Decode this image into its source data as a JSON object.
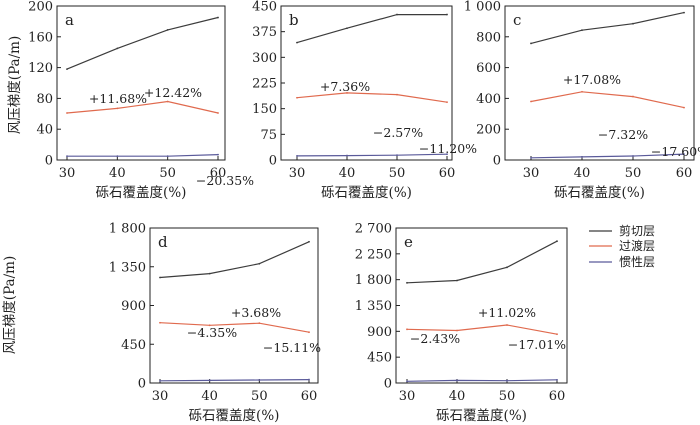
{
  "figure": {
    "xlabel": "砾石覆盖度(%)",
    "ylabel": "风压梯度(Pa/m)",
    "legend": [
      {
        "name": "剪切层",
        "color": "#3c3c3c"
      },
      {
        "name": "过渡层",
        "color": "#e06a4e"
      },
      {
        "name": "惯性层",
        "color": "#5a5a9a"
      }
    ]
  },
  "chart_data": [
    {
      "type": "line",
      "panel": "a",
      "x": [
        30,
        40,
        50,
        60
      ],
      "xticks": [
        "30",
        "40",
        "50",
        "60"
      ],
      "ylim": [
        0,
        200
      ],
      "yticks": [
        "0",
        "40",
        "80",
        "120",
        "160",
        "200"
      ],
      "xlabel": "砾石覆盖度(%)",
      "ylabel": "风压梯度(Pa/m)",
      "show_ylabel": true,
      "series": [
        {
          "name": "剪切层",
          "values": [
            118,
            145,
            169,
            185
          ]
        },
        {
          "name": "过渡层",
          "values": [
            61,
            67,
            76,
            61
          ]
        },
        {
          "name": "惯性层",
          "values": [
            5,
            5,
            5,
            7
          ]
        }
      ],
      "annotations": [
        "+11.68%",
        "+12.42%",
        "−20.35%"
      ]
    },
    {
      "type": "line",
      "panel": "b",
      "x": [
        30,
        40,
        50,
        60
      ],
      "xticks": [
        "30",
        "40",
        "50",
        "60"
      ],
      "ylim": [
        0,
        450
      ],
      "yticks": [
        "0",
        "75",
        "150",
        "225",
        "300",
        "375",
        "450"
      ],
      "xlabel": "砾石覆盖度(%)",
      "ylabel": "",
      "show_ylabel": false,
      "series": [
        {
          "name": "剪切层",
          "values": [
            343,
            385,
            425,
            425
          ]
        },
        {
          "name": "过渡层",
          "values": [
            182,
            196,
            191,
            169
          ]
        },
        {
          "name": "惯性层",
          "values": [
            12,
            13,
            14,
            17
          ]
        }
      ],
      "annotations": [
        "+7.36%",
        "−2.57%",
        "−11.20%"
      ]
    },
    {
      "type": "line",
      "panel": "c",
      "x": [
        30,
        40,
        50,
        60
      ],
      "xticks": [
        "30",
        "40",
        "50",
        "60"
      ],
      "ylim": [
        0,
        1000
      ],
      "yticks": [
        "0",
        "200",
        "400",
        "600",
        "800",
        "1 000"
      ],
      "xlabel": "砾石覆盖度(%)",
      "ylabel": "",
      "show_ylabel": false,
      "series": [
        {
          "name": "剪切层",
          "values": [
            757,
            843,
            885,
            957
          ]
        },
        {
          "name": "过渡层",
          "values": [
            380,
            443,
            412,
            340
          ]
        },
        {
          "name": "惯性层",
          "values": [
            14,
            20,
            26,
            38
          ]
        }
      ],
      "annotations": [
        "+17.08%",
        "−7.32%",
        "−17.60%"
      ]
    },
    {
      "type": "line",
      "panel": "d",
      "x": [
        30,
        40,
        50,
        60
      ],
      "xticks": [
        "30",
        "40",
        "50",
        "60"
      ],
      "ylim": [
        0,
        1800
      ],
      "yticks": [
        "0",
        "450",
        "900",
        "1 350",
        "1 800"
      ],
      "xlabel": "砾石覆盖度(%)",
      "ylabel": "风压梯度(Pa/m)",
      "show_ylabel": true,
      "series": [
        {
          "name": "剪切层",
          "values": [
            1225,
            1270,
            1385,
            1640
          ]
        },
        {
          "name": "过渡层",
          "values": [
            700,
            670,
            695,
            590
          ]
        },
        {
          "name": "惯性层",
          "values": [
            25,
            30,
            35,
            40
          ]
        }
      ],
      "annotations": [
        "−4.35%",
        "+3.68%",
        "−15.11%"
      ]
    },
    {
      "type": "line",
      "panel": "e",
      "x": [
        30,
        40,
        50,
        60
      ],
      "xticks": [
        "30",
        "40",
        "50",
        "60"
      ],
      "ylim": [
        0,
        2700
      ],
      "yticks": [
        "0",
        "450",
        "900",
        "1 350",
        "1 800",
        "2 250",
        "2 700"
      ],
      "xlabel": "砾石覆盖度(%)",
      "ylabel": "",
      "show_ylabel": false,
      "series": [
        {
          "name": "剪切层",
          "values": [
            1745,
            1785,
            2015,
            2470
          ]
        },
        {
          "name": "过渡层",
          "values": [
            935,
            915,
            1010,
            850
          ]
        },
        {
          "name": "惯性层",
          "values": [
            30,
            45,
            40,
            55
          ]
        }
      ],
      "annotations": [
        "−2.43%",
        "+11.02%",
        "−17.01%"
      ]
    }
  ]
}
